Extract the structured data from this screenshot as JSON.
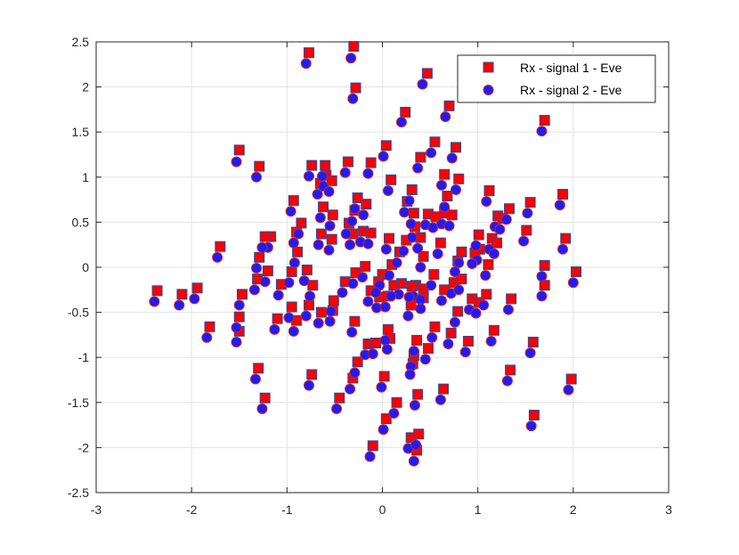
{
  "chart_data": {
    "type": "scatter",
    "title": "",
    "xlabel": "",
    "ylabel": "",
    "xlim": [
      -3,
      3
    ],
    "ylim": [
      -2.5,
      2.5
    ],
    "xticks": [
      "-3",
      "-2",
      "-1",
      "0",
      "1",
      "2",
      "3"
    ],
    "yticks": [
      "-2.5",
      "-2",
      "-1.5",
      "-1",
      "-0.5",
      "0",
      "0.5",
      "1",
      "1.5",
      "2",
      "2.5"
    ],
    "grid": true,
    "legend_position": "top-right",
    "series": [
      {
        "name": "Rx - signal 1 - Eve",
        "marker": "square",
        "fill_color": "#ff0000",
        "edge_color": "#1f4fa8",
        "points": [
          [
            -0.77,
            2.38
          ],
          [
            -0.3,
            2.45
          ],
          [
            0.47,
            2.15
          ],
          [
            -0.28,
            1.99
          ],
          [
            0.7,
            1.79
          ],
          [
            0.24,
            1.72
          ],
          [
            1.7,
            1.63
          ],
          [
            -1.5,
            1.3
          ],
          [
            0.55,
            1.39
          ],
          [
            0.04,
            1.35
          ],
          [
            0.77,
            1.33
          ],
          [
            0.4,
            1.22
          ],
          [
            -1.29,
            1.12
          ],
          [
            -0.74,
            1.13
          ],
          [
            -0.6,
            1.13
          ],
          [
            -0.36,
            1.17
          ],
          [
            -0.12,
            1.16
          ],
          [
            0.65,
            1.03
          ],
          [
            -0.59,
            1.02
          ],
          [
            0.09,
            0.97
          ],
          [
            0.8,
            0.98
          ],
          [
            -0.53,
            0.96
          ],
          [
            -0.65,
            0.93
          ],
          [
            1.12,
            0.85
          ],
          [
            -0.93,
            0.74
          ],
          [
            -0.26,
            0.77
          ],
          [
            0.31,
            0.86
          ],
          [
            0.68,
            0.79
          ],
          [
            1.89,
            0.81
          ],
          [
            -0.62,
            0.67
          ],
          [
            -0.29,
            0.63
          ],
          [
            -0.17,
            0.7
          ],
          [
            0.26,
            0.73
          ],
          [
            1.33,
            0.65
          ],
          [
            1.55,
            0.72
          ],
          [
            -0.85,
            0.49
          ],
          [
            -0.52,
            0.58
          ],
          [
            0.33,
            0.6
          ],
          [
            0.48,
            0.59
          ],
          [
            0.56,
            0.56
          ],
          [
            0.65,
            0.6
          ],
          [
            0.73,
            0.58
          ],
          [
            1.21,
            0.57
          ],
          [
            1.26,
            0.54
          ],
          [
            -0.35,
            0.49
          ],
          [
            -1.17,
            0.34
          ],
          [
            -0.9,
            0.39
          ],
          [
            -0.64,
            0.37
          ],
          [
            -0.53,
            0.31
          ],
          [
            -0.2,
            0.4
          ],
          [
            -0.12,
            0.38
          ],
          [
            0.34,
            0.45
          ],
          [
            1.01,
            0.36
          ],
          [
            1.15,
            0.32
          ],
          [
            1.51,
            0.41
          ],
          [
            -1.7,
            0.23
          ],
          [
            -1.23,
            0.34
          ],
          [
            -0.89,
            0.17
          ],
          [
            -0.31,
            0.37
          ],
          [
            0.07,
            0.32
          ],
          [
            0.25,
            0.3
          ],
          [
            0.4,
            0.33
          ],
          [
            0.61,
            0.27
          ],
          [
            0.83,
            0.17
          ],
          [
            1.02,
            0.2
          ],
          [
            1.2,
            0.27
          ],
          [
            1.92,
            0.32
          ],
          [
            -1.29,
            0.11
          ],
          [
            -1.2,
            -0.04
          ],
          [
            -0.95,
            -0.05
          ],
          [
            -0.79,
            -0.03
          ],
          [
            -0.18,
            0.01
          ],
          [
            0.0,
            -0.08
          ],
          [
            0.1,
            0.03
          ],
          [
            0.18,
            0.17
          ],
          [
            0.43,
            0.12
          ],
          [
            0.54,
            -0.08
          ],
          [
            0.79,
            0.07
          ],
          [
            0.97,
            0.16
          ],
          [
            1.11,
            0.03
          ],
          [
            1.7,
            0.02
          ],
          [
            2.03,
            -0.05
          ],
          [
            -1.47,
            -0.3
          ],
          [
            -1.31,
            -0.13
          ],
          [
            -1.06,
            -0.19
          ],
          [
            -0.39,
            -0.16
          ],
          [
            -0.28,
            -0.06
          ],
          [
            -0.04,
            -0.16
          ],
          [
            0.2,
            -0.18
          ],
          [
            0.35,
            -0.2
          ],
          [
            0.43,
            -0.24
          ],
          [
            0.75,
            -0.17
          ],
          [
            -2.36,
            -0.26
          ],
          [
            -2.1,
            -0.3
          ],
          [
            -1.94,
            -0.23
          ],
          [
            -0.73,
            -0.2
          ],
          [
            -0.51,
            -0.37
          ],
          [
            -0.12,
            -0.26
          ],
          [
            0.12,
            -0.2
          ],
          [
            0.31,
            -0.21
          ],
          [
            0.65,
            -0.25
          ],
          [
            0.83,
            -0.13
          ],
          [
            0.94,
            -0.35
          ],
          [
            1.01,
            -0.39
          ],
          [
            1.35,
            -0.35
          ],
          [
            1.7,
            -0.2
          ],
          [
            -1.5,
            -0.55
          ],
          [
            -1.1,
            -0.57
          ],
          [
            -0.95,
            -0.44
          ],
          [
            -0.77,
            -0.42
          ],
          [
            -0.52,
            -0.48
          ],
          [
            -0.03,
            -0.33
          ],
          [
            0.06,
            -0.32
          ],
          [
            0.3,
            -0.42
          ],
          [
            0.43,
            -0.34
          ],
          [
            0.79,
            -0.49
          ],
          [
            1.09,
            -0.3
          ],
          [
            -1.81,
            -0.66
          ],
          [
            -1.5,
            -0.71
          ],
          [
            -0.9,
            -0.59
          ],
          [
            -0.64,
            -0.5
          ],
          [
            -0.29,
            -0.6
          ],
          [
            0.06,
            -0.69
          ],
          [
            0.36,
            -0.81
          ],
          [
            0.55,
            -0.66
          ],
          [
            0.72,
            -0.73
          ],
          [
            1.17,
            -0.7
          ],
          [
            1.58,
            -0.83
          ],
          [
            -0.15,
            -0.85
          ],
          [
            -0.07,
            -0.84
          ],
          [
            0.08,
            -0.79
          ],
          [
            0.48,
            -0.9
          ],
          [
            0.9,
            -0.82
          ],
          [
            -0.26,
            -1.05
          ],
          [
            0.33,
            -0.98
          ],
          [
            0.02,
            -1.21
          ],
          [
            0.32,
            -1.07
          ],
          [
            -0.74,
            -1.19
          ],
          [
            -1.3,
            -1.12
          ],
          [
            1.34,
            -1.14
          ],
          [
            1.98,
            -1.24
          ],
          [
            -0.31,
            -1.23
          ],
          [
            0.64,
            -1.35
          ],
          [
            -1.23,
            -1.45
          ],
          [
            -0.45,
            -1.45
          ],
          [
            0.37,
            -1.41
          ],
          [
            0.15,
            -1.5
          ],
          [
            1.59,
            -1.64
          ],
          [
            0.04,
            -1.68
          ],
          [
            -0.1,
            -1.98
          ],
          [
            0.3,
            -1.89
          ],
          [
            0.38,
            -1.85
          ],
          [
            0.36,
            -2.03
          ]
        ]
      },
      {
        "name": "Rx - signal 2 - Eve",
        "marker": "circle",
        "fill_color": "#1c1cff",
        "edge_color": "#d32020",
        "points": [
          [
            -0.8,
            2.26
          ],
          [
            -0.33,
            2.32
          ],
          [
            0.42,
            2.03
          ],
          [
            -0.31,
            1.87
          ],
          [
            0.66,
            1.67
          ],
          [
            0.2,
            1.61
          ],
          [
            1.67,
            1.51
          ],
          [
            -1.53,
            1.17
          ],
          [
            0.51,
            1.27
          ],
          [
            0.01,
            1.23
          ],
          [
            0.73,
            1.21
          ],
          [
            0.37,
            1.1
          ],
          [
            -1.32,
            1.0
          ],
          [
            -0.77,
            1.01
          ],
          [
            -0.63,
            1.01
          ],
          [
            -0.39,
            1.05
          ],
          [
            -0.15,
            1.04
          ],
          [
            0.62,
            0.91
          ],
          [
            -0.62,
            0.9
          ],
          [
            0.06,
            0.85
          ],
          [
            0.77,
            0.86
          ],
          [
            -0.56,
            0.84
          ],
          [
            -0.68,
            0.81
          ],
          [
            1.09,
            0.73
          ],
          [
            -0.96,
            0.62
          ],
          [
            -0.29,
            0.65
          ],
          [
            0.28,
            0.74
          ],
          [
            0.65,
            0.67
          ],
          [
            1.86,
            0.69
          ],
          [
            -0.65,
            0.55
          ],
          [
            -0.32,
            0.51
          ],
          [
            -0.2,
            0.58
          ],
          [
            0.23,
            0.61
          ],
          [
            1.3,
            0.53
          ],
          [
            1.52,
            0.6
          ],
          [
            -0.88,
            0.37
          ],
          [
            -0.55,
            0.46
          ],
          [
            0.3,
            0.48
          ],
          [
            0.45,
            0.47
          ],
          [
            0.53,
            0.44
          ],
          [
            0.62,
            0.48
          ],
          [
            0.7,
            0.46
          ],
          [
            1.18,
            0.45
          ],
          [
            1.23,
            0.42
          ],
          [
            -0.38,
            0.37
          ],
          [
            -1.2,
            0.22
          ],
          [
            -0.93,
            0.27
          ],
          [
            -0.67,
            0.25
          ],
          [
            -0.56,
            0.19
          ],
          [
            -0.23,
            0.28
          ],
          [
            -0.15,
            0.26
          ],
          [
            0.31,
            0.33
          ],
          [
            0.98,
            0.24
          ],
          [
            1.12,
            0.2
          ],
          [
            1.48,
            0.29
          ],
          [
            -1.73,
            0.11
          ],
          [
            -1.26,
            0.22
          ],
          [
            -0.92,
            0.05
          ],
          [
            -0.34,
            0.25
          ],
          [
            0.04,
            0.2
          ],
          [
            0.22,
            0.18
          ],
          [
            0.37,
            0.21
          ],
          [
            0.58,
            0.15
          ],
          [
            0.8,
            0.05
          ],
          [
            0.99,
            0.08
          ],
          [
            1.17,
            0.15
          ],
          [
            1.89,
            0.2
          ],
          [
            -1.32,
            -0.01
          ],
          [
            -1.23,
            -0.16
          ],
          [
            -0.98,
            -0.17
          ],
          [
            -0.82,
            -0.15
          ],
          [
            -0.21,
            -0.11
          ],
          [
            -0.03,
            -0.2
          ],
          [
            0.07,
            -0.09
          ],
          [
            0.15,
            0.05
          ],
          [
            0.4,
            0.0
          ],
          [
            0.51,
            -0.2
          ],
          [
            0.76,
            -0.05
          ],
          [
            0.94,
            0.04
          ],
          [
            1.08,
            -0.09
          ],
          [
            1.67,
            -0.1
          ],
          [
            2.0,
            -0.17
          ],
          [
            -1.5,
            -0.42
          ],
          [
            -1.34,
            -0.25
          ],
          [
            -1.09,
            -0.31
          ],
          [
            -0.42,
            -0.28
          ],
          [
            -0.31,
            -0.18
          ],
          [
            -0.07,
            -0.28
          ],
          [
            0.17,
            -0.3
          ],
          [
            0.32,
            -0.32
          ],
          [
            0.4,
            -0.36
          ],
          [
            0.72,
            -0.29
          ],
          [
            -2.39,
            -0.38
          ],
          [
            -2.13,
            -0.42
          ],
          [
            -1.97,
            -0.35
          ],
          [
            -0.76,
            -0.32
          ],
          [
            -0.54,
            -0.49
          ],
          [
            -0.15,
            -0.38
          ],
          [
            0.09,
            -0.32
          ],
          [
            0.28,
            -0.33
          ],
          [
            0.62,
            -0.37
          ],
          [
            0.8,
            -0.25
          ],
          [
            0.91,
            -0.47
          ],
          [
            0.98,
            -0.51
          ],
          [
            1.32,
            -0.47
          ],
          [
            1.67,
            -0.32
          ],
          [
            -1.53,
            -0.67
          ],
          [
            -1.13,
            -0.69
          ],
          [
            -0.98,
            -0.56
          ],
          [
            -0.8,
            -0.54
          ],
          [
            -0.55,
            -0.6
          ],
          [
            -0.06,
            -0.45
          ],
          [
            0.03,
            -0.44
          ],
          [
            0.27,
            -0.54
          ],
          [
            0.4,
            -0.46
          ],
          [
            0.76,
            -0.61
          ],
          [
            1.06,
            -0.42
          ],
          [
            -1.84,
            -0.78
          ],
          [
            -1.53,
            -0.83
          ],
          [
            -0.93,
            -0.71
          ],
          [
            -0.67,
            -0.62
          ],
          [
            -0.32,
            -0.72
          ],
          [
            0.03,
            -0.81
          ],
          [
            0.33,
            -0.93
          ],
          [
            0.52,
            -0.78
          ],
          [
            0.69,
            -0.85
          ],
          [
            1.14,
            -0.82
          ],
          [
            1.55,
            -0.95
          ],
          [
            -0.18,
            -0.97
          ],
          [
            -0.1,
            -0.96
          ],
          [
            0.05,
            -0.91
          ],
          [
            0.45,
            -1.02
          ],
          [
            0.87,
            -0.94
          ],
          [
            -0.29,
            -1.17
          ],
          [
            0.3,
            -1.1
          ],
          [
            -0.01,
            -1.33
          ],
          [
            0.29,
            -1.19
          ],
          [
            -0.77,
            -1.31
          ],
          [
            -1.33,
            -1.24
          ],
          [
            1.31,
            -1.26
          ],
          [
            1.95,
            -1.36
          ],
          [
            -0.34,
            -1.35
          ],
          [
            0.61,
            -1.47
          ],
          [
            -1.26,
            -1.57
          ],
          [
            -0.48,
            -1.57
          ],
          [
            0.34,
            -1.53
          ],
          [
            0.12,
            -1.62
          ],
          [
            1.56,
            -1.76
          ],
          [
            0.01,
            -1.8
          ],
          [
            -0.13,
            -2.1
          ],
          [
            0.27,
            -2.01
          ],
          [
            0.35,
            -1.97
          ],
          [
            0.33,
            -2.15
          ]
        ]
      }
    ]
  }
}
